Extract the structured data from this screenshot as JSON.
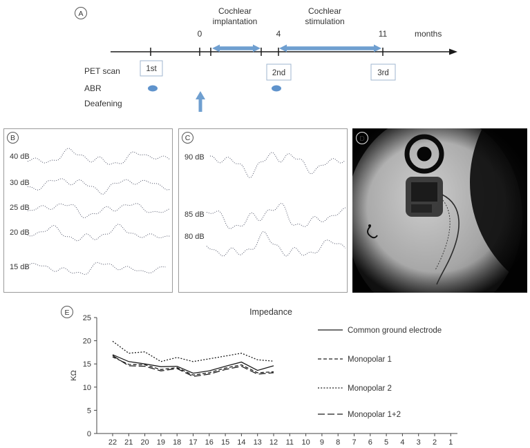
{
  "timeline": {
    "panel_label": "A",
    "phase1_line1": "Cochlear",
    "phase1_line2": "implantation",
    "phase2_line1": "Cochlear",
    "phase2_line2": "stimulation",
    "ticks": {
      "t0": "0",
      "t4": "4",
      "t11": "11"
    },
    "months_label": "months",
    "rows": {
      "pet": "PET scan",
      "abr": "ABR",
      "deafening": "Deafening"
    },
    "pet_boxes": {
      "first": "1st",
      "second": "2nd",
      "third": "3rd"
    },
    "accent_blue": "#6f9fd0"
  },
  "panel_b": {
    "label": "B",
    "trace_labels": [
      "40 dB",
      "30 dB",
      "25 dB",
      "20 dB",
      "15 dB"
    ]
  },
  "panel_c": {
    "label": "C",
    "trace_labels": [
      "90 dB",
      "85 dB",
      "80 dB"
    ]
  },
  "panel_d": {
    "label": "D"
  },
  "panel_e": {
    "label": "E"
  },
  "chart_data": {
    "type": "line",
    "title": "Impedance",
    "xlabel": "",
    "ylabel": "KΩ",
    "ylim": [
      0,
      25
    ],
    "yticks": [
      0,
      5,
      10,
      15,
      20,
      25
    ],
    "grid": false,
    "legend_position": "right",
    "categories": [
      "22",
      "21",
      "20",
      "19",
      "18",
      "17",
      "16",
      "15",
      "14",
      "13",
      "12",
      "11",
      "10",
      "9",
      "8",
      "7",
      "6",
      "5",
      "4",
      "3",
      "2",
      "1"
    ],
    "series": [
      {
        "name": "Common ground electrode",
        "style": "solid",
        "values": [
          17,
          15.5,
          15,
          14.4,
          14.5,
          13,
          13.5,
          14.5,
          15.4,
          13.6,
          14.6,
          null,
          null,
          null,
          null,
          null,
          null,
          null,
          null,
          null,
          null,
          null
        ]
      },
      {
        "name": "Monopolar 1",
        "style": "dashed",
        "values": [
          16.5,
          14.9,
          14.8,
          13.8,
          14.2,
          12.6,
          13.1,
          14.1,
          14.8,
          13.1,
          13.3,
          null,
          null,
          null,
          null,
          null,
          null,
          null,
          null,
          null,
          null,
          null
        ]
      },
      {
        "name": "Monopolar 2",
        "style": "dotted",
        "values": [
          19.9,
          17.3,
          17.6,
          15.5,
          16.4,
          15.5,
          16.1,
          16.7,
          17.3,
          15.9,
          15.6,
          null,
          null,
          null,
          null,
          null,
          null,
          null,
          null,
          null,
          null,
          null
        ]
      },
      {
        "name": "Monopolar 1+2",
        "style": "longdash",
        "values": [
          16.8,
          14.6,
          14.5,
          13.5,
          14,
          12.3,
          12.8,
          13.8,
          14.5,
          12.8,
          13.1,
          null,
          null,
          null,
          null,
          null,
          null,
          null,
          null,
          null,
          null,
          null
        ]
      }
    ]
  }
}
